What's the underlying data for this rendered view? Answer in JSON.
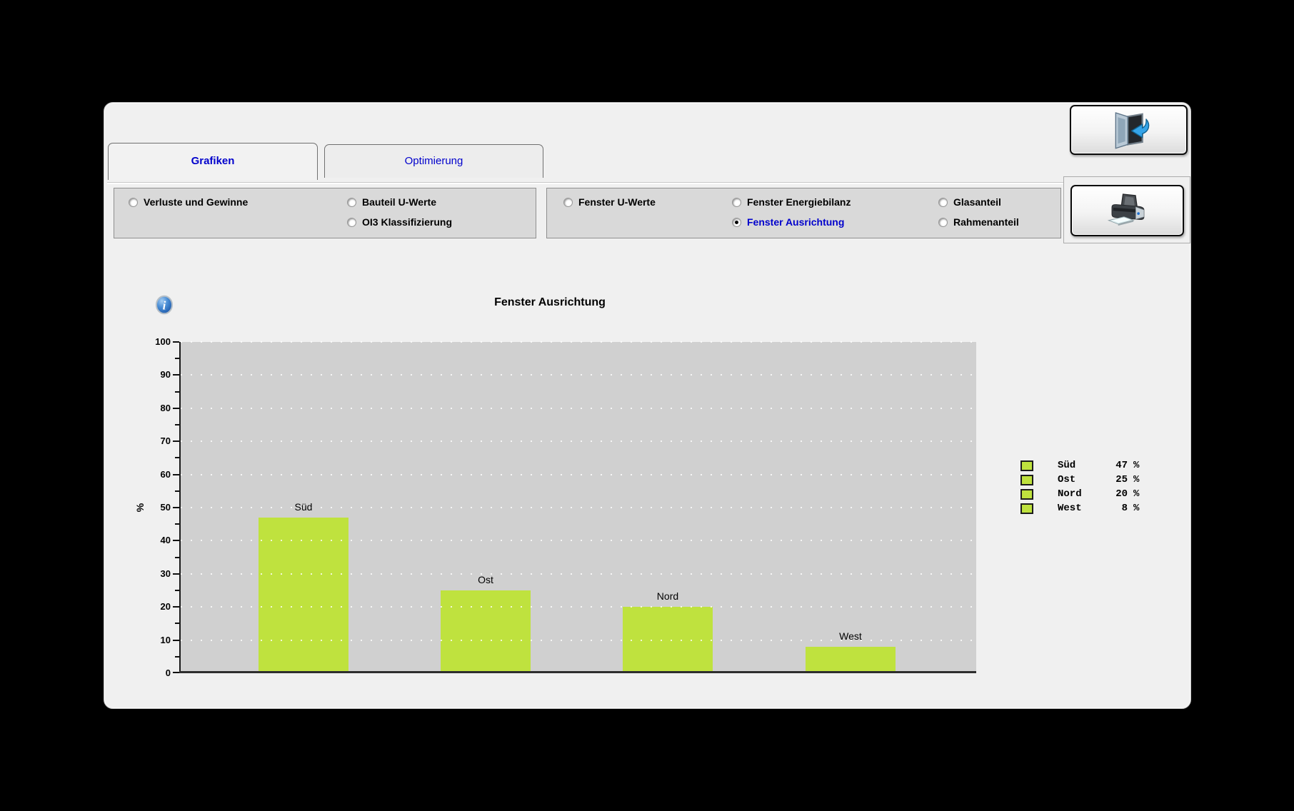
{
  "app": {
    "background": "#000000",
    "window_bg": "#f0f0f0",
    "accent_blue": "#0000cc"
  },
  "tabs": [
    {
      "label": "Grafiken",
      "active": true
    },
    {
      "label": "Optimierung",
      "active": false
    }
  ],
  "toolbar": {
    "groups": [
      {
        "options": [
          {
            "label": "Verluste und Gewinne",
            "selected": false
          },
          {
            "label": "Bauteil U-Werte",
            "selected": false
          },
          {
            "label": "OI3 Klassifizierung",
            "selected": false
          }
        ]
      },
      {
        "options": [
          {
            "label": "Fenster U-Werte",
            "selected": false
          },
          {
            "label": "Fenster Energiebilanz",
            "selected": false
          },
          {
            "label": "Fenster Ausrichtung",
            "selected": true
          },
          {
            "label": "Glasanteil",
            "selected": false
          },
          {
            "label": "Rahmenanteil",
            "selected": false
          }
        ]
      }
    ]
  },
  "buttons": {
    "exit": "exit-door-icon",
    "print": "printer-icon",
    "info": "info-icon"
  },
  "chart_data": {
    "type": "bar",
    "title": "Fenster Ausrichtung",
    "xlabel": "",
    "ylabel": "%",
    "ylim": [
      0,
      100
    ],
    "ytick_step": 10,
    "grid": "horizontal white dotted lines every 10, gray plot background",
    "legend_position": "right",
    "categories": [
      "Süd",
      "Ost",
      "Nord",
      "West"
    ],
    "values": [
      47,
      25,
      20,
      8
    ],
    "legend": [
      {
        "label": "Süd",
        "value": 47,
        "unit": "%"
      },
      {
        "label": "Ost",
        "value": 25,
        "unit": "%"
      },
      {
        "label": "Nord",
        "value": 20,
        "unit": "%"
      },
      {
        "label": "West",
        "value": 8,
        "unit": "%"
      }
    ],
    "colors": {
      "bar": "#bfe23e",
      "plot_bg": "#d0d0d0",
      "grid_dots": "#ffffff",
      "axis": "#1a1a1a"
    }
  }
}
